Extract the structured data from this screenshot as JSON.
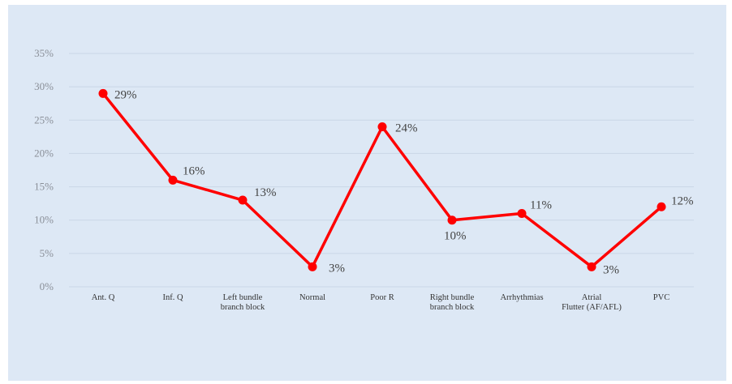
{
  "chart_data": {
    "type": "line",
    "categories": [
      "Ant. Q",
      "Inf. Q",
      "Left bundle\nbranch block",
      "Normal",
      "Poor R",
      "Right bundle\nbranch block",
      "Arrhythmias",
      "Atrial\nFlutter (AF/AFL)",
      "PVC"
    ],
    "series": [
      {
        "values": [
          29,
          16,
          13,
          3,
          24,
          10,
          11,
          3,
          12
        ]
      }
    ],
    "data_labels": [
      "29%",
      "16%",
      "13%",
      "3%",
      "24%",
      "10%",
      "11%",
      "3%",
      "12%"
    ],
    "y_ticks": [
      "0%",
      "5%",
      "10%",
      "15%",
      "20%",
      "25%",
      "30%",
      "35%"
    ],
    "ylim": [
      0,
      35
    ],
    "grid": true,
    "legend": "none",
    "colors": {
      "line": "#ff0000",
      "background": "#dde8f5",
      "grid": "#c9d6e6"
    }
  }
}
